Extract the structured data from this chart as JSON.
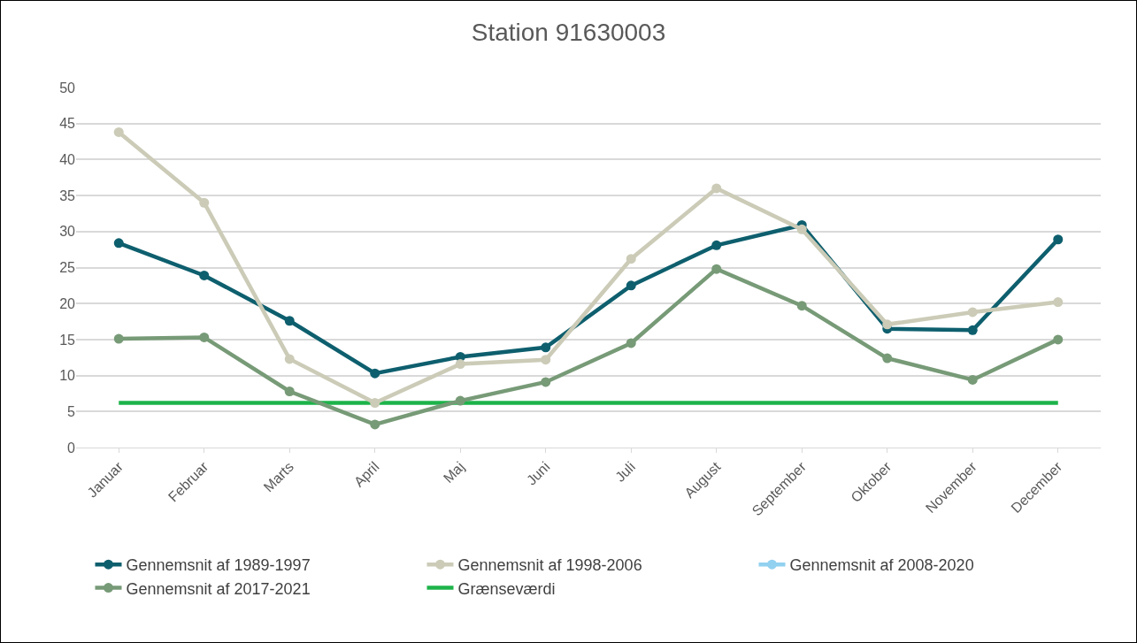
{
  "chart_data": {
    "type": "line",
    "title": "Station 91630003",
    "categories": [
      "Januar",
      "Februar",
      "Marts",
      "April",
      "Maj",
      "Juni",
      "Juli",
      "August",
      "September",
      "Oktober",
      "November",
      "December"
    ],
    "series": [
      {
        "name": "Gennemsnit af 1989-1997",
        "color": "#0e5f6e",
        "values": [
          28.4,
          23.9,
          17.6,
          10.3,
          12.6,
          13.9,
          22.5,
          28.1,
          30.9,
          16.5,
          16.3,
          28.9
        ]
      },
      {
        "name": "Gennemsnit af 1998-2006",
        "color": "#cbcbb7",
        "values": [
          43.8,
          34.0,
          12.3,
          6.2,
          11.6,
          12.2,
          26.2,
          36.0,
          30.3,
          17.1,
          18.8,
          20.2
        ]
      },
      {
        "name": "Gennemsnit af 2008-2020",
        "color": "#92d1f0",
        "values": [
          null,
          null,
          null,
          null,
          null,
          null,
          null,
          null,
          null,
          null,
          null,
          null
        ]
      },
      {
        "name": "Gennemsnit af 2017-2021",
        "color": "#779a77",
        "values": [
          15.1,
          15.3,
          7.8,
          3.2,
          6.5,
          9.1,
          14.5,
          24.8,
          19.7,
          12.4,
          9.4,
          15.0
        ]
      },
      {
        "name": "Grænseværdi",
        "color": "#1db34a",
        "marker": "none",
        "values": [
          6.2,
          6.2,
          6.2,
          6.2,
          6.2,
          6.2,
          6.2,
          6.2,
          6.2,
          6.2,
          6.2,
          6.2
        ]
      }
    ],
    "ylim": [
      0,
      50
    ],
    "yticks": [
      0,
      5,
      10,
      15,
      20,
      25,
      30,
      35,
      40,
      45,
      50
    ],
    "grid": "y",
    "legend": "bottom",
    "marker": "circle",
    "line_style": "solid"
  }
}
